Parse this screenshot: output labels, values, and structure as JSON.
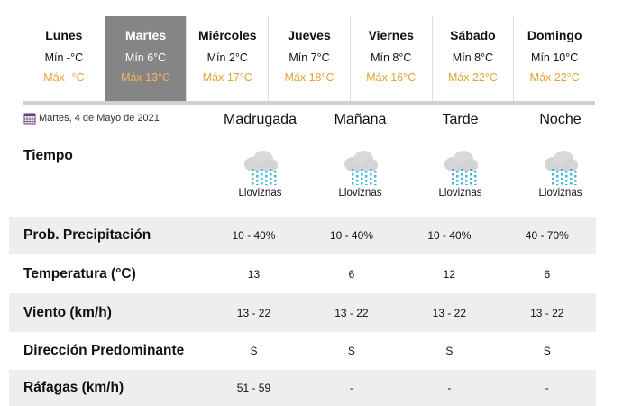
{
  "days": [
    {
      "name": "Lunes",
      "min": "Mín -°C",
      "max": "Máx -°C",
      "active": false
    },
    {
      "name": "Martes",
      "min": "Mín 6°C",
      "max": "Máx 13°C",
      "active": true
    },
    {
      "name": "Miércoles",
      "min": "Mín 2°C",
      "max": "Máx 17°C",
      "active": false
    },
    {
      "name": "Jueves",
      "min": "Mín 7°C",
      "max": "Máx 18°C",
      "active": false
    },
    {
      "name": "Viernes",
      "min": "Mín 8°C",
      "max": "Máx 16°C",
      "active": false
    },
    {
      "name": "Sábado",
      "min": "Mín 8°C",
      "max": "Máx 22°C",
      "active": false
    },
    {
      "name": "Domingo",
      "min": "Mín 10°C",
      "max": "Máx 22°C",
      "active": false
    }
  ],
  "date": "Martes, 4 de Mayo de 2021",
  "periods": [
    "Madrugada",
    "Mañana",
    "Tarde",
    "Noche"
  ],
  "weather_label": "Tiempo",
  "weather": [
    {
      "icon": "drizzle-cloud-icon",
      "text": "Lloviznas"
    },
    {
      "icon": "drizzle-cloud-icon",
      "text": "Lloviznas"
    },
    {
      "icon": "drizzle-cloud-icon",
      "text": "Lloviznas"
    },
    {
      "icon": "drizzle-cloud-icon",
      "text": "Lloviznas"
    }
  ],
  "rows": [
    {
      "label": "Prob. Precipitación",
      "values": [
        "10 - 40%",
        "10 - 40%",
        "10 - 40%",
        "40 - 70%"
      ]
    },
    {
      "label": "Temperatura (°C)",
      "values": [
        "13",
        "6",
        "12",
        "6"
      ]
    },
    {
      "label": "Viento (km/h)",
      "values": [
        "13 - 22",
        "13 - 22",
        "13 - 22",
        "13 - 22"
      ]
    },
    {
      "label": "Dirección Predominante",
      "values": [
        "S",
        "S",
        "S",
        "S"
      ]
    },
    {
      "label": "Ráfagas (km/h)",
      "values": [
        "51 - 59",
        "-",
        "-",
        "-"
      ]
    }
  ],
  "colors": {
    "max_temp": "#e8a13a",
    "active_tab": "#858585"
  }
}
